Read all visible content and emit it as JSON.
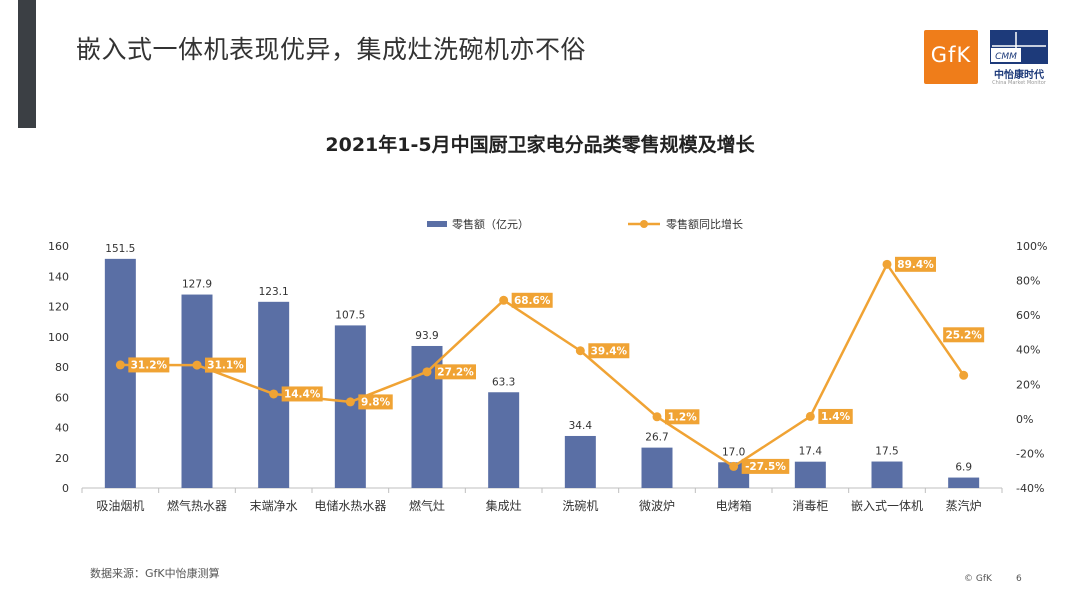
{
  "slide": {
    "title": "嵌入式一体机表现优异，集成灶洗碗机亦不俗",
    "source": "数据来源：GfK中怡康测算",
    "copyright": "© GfK",
    "page": "6"
  },
  "logos": {
    "gfk": "GfK",
    "cmm_text": "CMM",
    "cmm_name": "中怡康时代",
    "cmm_sub": "China Market Monitor"
  },
  "colors": {
    "bar": "#5a6fa5",
    "line": "#f0a334",
    "label_bg": "#f0a334",
    "sidebar": "#3b3f44",
    "gfk_orange": "#ef7d1a",
    "cmm_blue": "#1d3a7a"
  },
  "chart_data": {
    "type": "bar",
    "title": "2021年1-5月中国厨卫家电分品类零售规模及增长",
    "categories": [
      "吸油烟机",
      "燃气热水器",
      "末端净水",
      "电储水热水器",
      "燃气灶",
      "集成灶",
      "洗碗机",
      "微波炉",
      "电烤箱",
      "消毒柜",
      "嵌入式一体机",
      "蒸汽炉"
    ],
    "series": [
      {
        "name": "零售额（亿元）",
        "type": "bar",
        "axis": "left",
        "values": [
          151.5,
          127.9,
          123.1,
          107.5,
          93.9,
          63.3,
          34.4,
          26.7,
          17.0,
          17.4,
          17.5,
          6.9
        ],
        "labels": [
          "151.5",
          "127.9",
          "123.1",
          "107.5",
          "93.9",
          "63.3",
          "34.4",
          "26.7",
          "17.0",
          "17.4",
          "17.5",
          "6.9"
        ]
      },
      {
        "name": "零售额同比增长",
        "type": "line",
        "axis": "right",
        "values": [
          31.2,
          31.1,
          14.4,
          9.8,
          27.2,
          68.6,
          39.4,
          1.2,
          -27.5,
          1.4,
          89.4,
          25.2
        ],
        "labels": [
          "31.2%",
          "31.1%",
          "14.4%",
          "9.8%",
          "27.2%",
          "68.6%",
          "39.4%",
          "1.2%",
          "-27.5%",
          "1.4%",
          "89.4%",
          "25.2%"
        ]
      }
    ],
    "ylim_left": [
      0,
      160
    ],
    "yticks_left": [
      "0",
      "20",
      "40",
      "60",
      "80",
      "100",
      "120",
      "140",
      "160"
    ],
    "ylim_right": [
      -40,
      100
    ],
    "yticks_right": [
      "-40%",
      "-20%",
      "0%",
      "20%",
      "40%",
      "60%",
      "80%",
      "100%"
    ],
    "grid": false,
    "legend_position": "top-center"
  }
}
